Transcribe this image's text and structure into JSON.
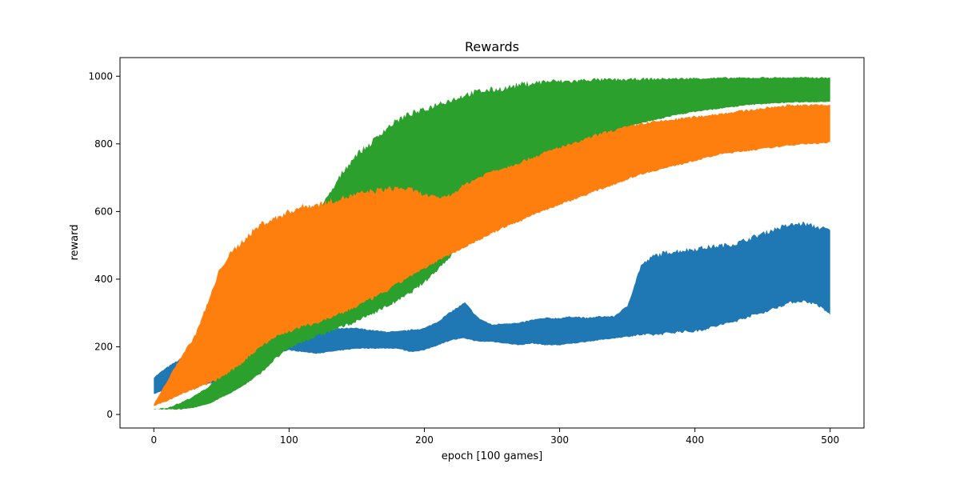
{
  "chart_data": {
    "type": "area",
    "title": "Rewards",
    "xlabel": "epoch [100 games]",
    "ylabel": "reward",
    "xlim": [
      -25,
      525
    ],
    "ylim": [
      -40,
      1055
    ],
    "xticks": [
      0,
      100,
      200,
      300,
      400,
      500
    ],
    "yticks": [
      0,
      200,
      400,
      600,
      800,
      1000
    ],
    "grid": false,
    "legend": "none",
    "x": [
      0,
      10,
      20,
      30,
      40,
      50,
      60,
      70,
      80,
      90,
      100,
      110,
      120,
      130,
      140,
      150,
      160,
      170,
      180,
      190,
      200,
      210,
      220,
      230,
      240,
      250,
      260,
      270,
      280,
      290,
      300,
      310,
      320,
      330,
      340,
      350,
      360,
      370,
      380,
      390,
      400,
      410,
      420,
      430,
      440,
      450,
      460,
      470,
      480,
      490,
      500
    ],
    "series": [
      {
        "color": "#1f77b4",
        "upper": [
          110,
          140,
          165,
          185,
          160,
          135,
          130,
          145,
          160,
          185,
          205,
          235,
          245,
          250,
          255,
          255,
          250,
          245,
          245,
          250,
          255,
          275,
          305,
          330,
          285,
          265,
          270,
          270,
          280,
          285,
          285,
          290,
          285,
          290,
          290,
          320,
          440,
          470,
          480,
          485,
          490,
          495,
          500,
          505,
          520,
          535,
          550,
          560,
          565,
          555,
          545
        ],
        "lower": [
          60,
          75,
          80,
          85,
          90,
          100,
          120,
          140,
          160,
          180,
          190,
          185,
          180,
          185,
          190,
          195,
          195,
          195,
          195,
          185,
          190,
          205,
          220,
          225,
          215,
          215,
          210,
          205,
          210,
          205,
          205,
          210,
          215,
          220,
          225,
          230,
          235,
          235,
          240,
          245,
          245,
          255,
          265,
          275,
          290,
          300,
          315,
          330,
          335,
          325,
          295
        ]
      },
      {
        "color": "#2ca02c",
        "upper": [
          15,
          20,
          35,
          55,
          80,
          120,
          150,
          210,
          290,
          370,
          450,
          530,
          590,
          650,
          720,
          770,
          800,
          840,
          870,
          890,
          900,
          920,
          930,
          945,
          955,
          960,
          965,
          975,
          980,
          985,
          985,
          985,
          990,
          990,
          990,
          990,
          992,
          992,
          993,
          993,
          994,
          994,
          995,
          995,
          995,
          996,
          996,
          996,
          996,
          996,
          996
        ],
        "lower": [
          15,
          15,
          15,
          20,
          30,
          50,
          70,
          95,
          125,
          165,
          195,
          215,
          230,
          245,
          260,
          275,
          295,
          315,
          335,
          360,
          390,
          430,
          470,
          510,
          550,
          590,
          620,
          650,
          690,
          720,
          750,
          770,
          795,
          815,
          835,
          850,
          860,
          870,
          880,
          888,
          895,
          900,
          905,
          910,
          915,
          918,
          920,
          922,
          923,
          924,
          925
        ]
      },
      {
        "color": "#ff7f0e",
        "upper": [
          30,
          100,
          170,
          230,
          330,
          440,
          490,
          530,
          565,
          580,
          600,
          615,
          620,
          630,
          640,
          650,
          660,
          665,
          670,
          665,
          650,
          640,
          650,
          680,
          700,
          720,
          730,
          745,
          760,
          775,
          790,
          800,
          815,
          830,
          840,
          850,
          860,
          865,
          870,
          875,
          880,
          885,
          890,
          895,
          900,
          905,
          910,
          915,
          915,
          915,
          915
        ],
        "lower": [
          25,
          40,
          60,
          75,
          90,
          110,
          135,
          170,
          205,
          230,
          245,
          260,
          270,
          285,
          300,
          320,
          340,
          360,
          385,
          410,
          430,
          455,
          475,
          495,
          515,
          535,
          555,
          570,
          590,
          605,
          620,
          635,
          650,
          665,
          680,
          695,
          710,
          720,
          730,
          740,
          750,
          760,
          770,
          775,
          780,
          785,
          790,
          795,
          800,
          800,
          805
        ]
      }
    ]
  }
}
